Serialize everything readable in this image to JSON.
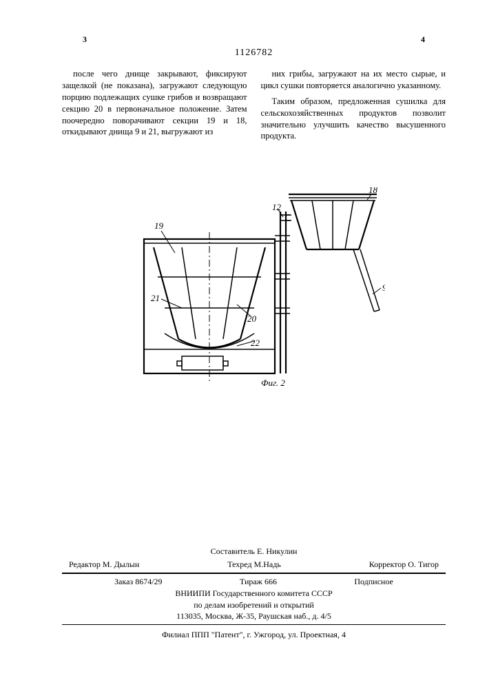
{
  "header": {
    "page_left": "3",
    "page_right": "4",
    "doc_number": "1126782"
  },
  "body": {
    "left_col": "после чего днище закрывают, фиксируют защелкой (не показана), загружают следующую порцию подлежащих сушке грибов и возвращают секцию 20 в первоначальное положение. Затем поочередно поворачивают секции 19 и 18, откидывают днища 9 и 21, выгружают из",
    "right_col_p1": "них грибы, загружают на их место сырые, и цикл сушки повторяется аналогично указанному.",
    "right_col_p2": "Таким образом, предложенная сушилка для сельскохозяйственных продуктов позволит значительно улучшить качество высушенного продукта."
  },
  "figure": {
    "label": "Фиг. 2",
    "callouts": {
      "r19": "19",
      "r21": "21",
      "r20": "20",
      "r22": "22",
      "r12": "12",
      "r18": "18",
      "r9": "9"
    },
    "stroke_color": "#000000",
    "stroke_width": 2.2,
    "stroke_width_thin": 1.5,
    "font_size": 13,
    "font_family": "serif"
  },
  "footer": {
    "compiler": "Составитель Е. Никулин",
    "editor": "Редактор М. Дылын",
    "techred": "Техред М.Надь",
    "corrector": "Корректор О. Тигор",
    "order": "Заказ 8674/29",
    "tirage": "Тираж 666",
    "subscription": "Подписное",
    "institute_l1": "ВНИИПИ Государственного комитета СССР",
    "institute_l2": "по делам изобретений и открытий",
    "institute_l3": "113035, Москва, Ж-35, Раушская наб., д. 4/5",
    "branch": "Филиал ППП \"Патент\", г. Ужгород, ул. Проектная, 4"
  }
}
